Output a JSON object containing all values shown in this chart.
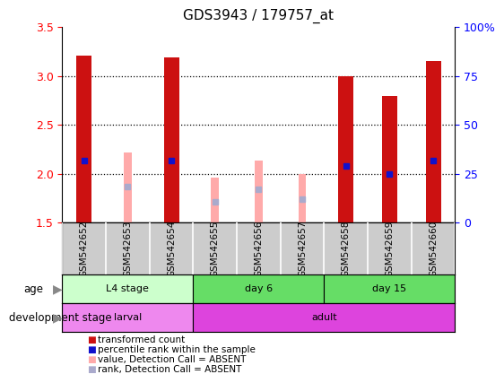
{
  "title": "GDS3943 / 179757_at",
  "samples": [
    "GSM542652",
    "GSM542653",
    "GSM542654",
    "GSM542655",
    "GSM542656",
    "GSM542657",
    "GSM542658",
    "GSM542659",
    "GSM542660"
  ],
  "transformed_count": [
    3.21,
    null,
    3.19,
    null,
    null,
    null,
    3.0,
    2.79,
    3.15
  ],
  "percentile_rank": [
    2.13,
    null,
    2.13,
    null,
    null,
    null,
    2.08,
    2.0,
    2.13
  ],
  "absent_value": [
    null,
    2.22,
    null,
    1.96,
    2.13,
    2.0,
    null,
    null,
    null
  ],
  "absent_rank": [
    null,
    1.87,
    null,
    1.71,
    1.84,
    1.74,
    null,
    null,
    null
  ],
  "ylim": [
    1.5,
    3.5
  ],
  "yticks_left": [
    1.5,
    2.0,
    2.5,
    3.0,
    3.5
  ],
  "yticks_right_labels": [
    "0",
    "25",
    "50",
    "75",
    "100%"
  ],
  "bar_width": 0.35,
  "absent_bar_width": 0.18,
  "color_red": "#cc1111",
  "color_blue": "#1111cc",
  "color_pink": "#ffaaaa",
  "color_lightblue": "#aaaacc",
  "gray_bg": "#cccccc",
  "age_colors": [
    "#ccffcc",
    "#66dd66",
    "#44cc44"
  ],
  "dev_colors": [
    "#ee88ee",
    "#dd44dd"
  ],
  "legend_items": [
    {
      "label": "transformed count",
      "color": "#cc1111"
    },
    {
      "label": "percentile rank within the sample",
      "color": "#1111cc"
    },
    {
      "label": "value, Detection Call = ABSENT",
      "color": "#ffaaaa"
    },
    {
      "label": "rank, Detection Call = ABSENT",
      "color": "#aaaacc"
    }
  ],
  "grid_lines": [
    2.0,
    2.5,
    3.0
  ]
}
